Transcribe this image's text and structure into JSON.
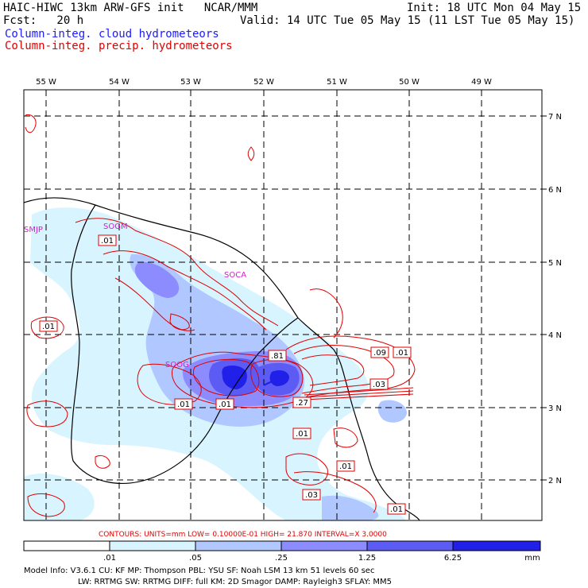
{
  "header": {
    "model_title": "HAIC-HIWC 13km ARW-GFS init   NCAR/MMM",
    "fcst": "Fcst:   20 h",
    "init": "Init: 18 UTC Mon 04 May 15",
    "valid": "Valid: 14 UTC Tue 05 May 15 (11 LST Tue 05 May 15)",
    "cloud_label": "Column-integ. cloud hydrometeors",
    "precip_label": "Column-integ. precip. hydrometeors"
  },
  "colors": {
    "cloud": "#1a1aff",
    "precip": "#e00000",
    "station": "#d81ad8",
    "shade_levels": [
      "#d8f4ff",
      "#b0c8ff",
      "#8c8cff",
      "#5c5cf4",
      "#2020e8"
    ]
  },
  "axes": {
    "lon_labels": [
      "55 W",
      "54 W",
      "53 W",
      "52 W",
      "51 W",
      "50 W",
      "49 W"
    ],
    "lat_labels": [
      "7 N",
      "6 N",
      "5 N",
      "4 N",
      "3 N",
      "2 N"
    ]
  },
  "stations": [
    "SMJP",
    "SOGM",
    "SOCA",
    "SOOG"
  ],
  "contour_labels": [
    ".01",
    ".01",
    ".81",
    ".09",
    ".01",
    ".03",
    ".27",
    ".01",
    ".01",
    ".01",
    ".01",
    ".03",
    ".01"
  ],
  "contour_info": "CONTOURS:  UNITS=mm  LOW= 0.10000E-01  HIGH=  21.870     INTERVAL=X  3.0000",
  "colorbar": {
    "ticks": [
      ".01",
      ".05",
      ".25",
      "1.25",
      "6.25"
    ],
    "unit": "mm"
  },
  "model_info": {
    "line1": "Model Info: V3.6.1   CU: KF      MP: Thompson    PBL: YSU      SF: Noah LSM    13 km   51 levels   60 sec",
    "line2": "LW: RRTMG    SW: RRTMG   DIFF: full   KM: 2D Smagor  DAMP: Rayleigh3  SFLAY: MM5"
  }
}
